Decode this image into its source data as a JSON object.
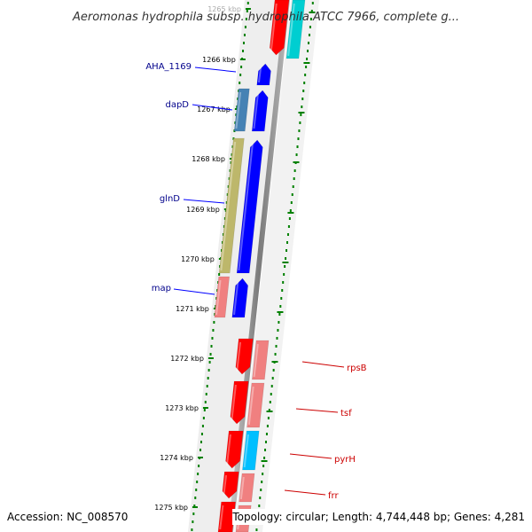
{
  "title": "Aeromonas hydrophila subsp. hydrophila ATCC 7966, complete g...",
  "footer": {
    "accession": "Accession: NC_008570",
    "stats": "Topology: circular; Length: 4,744,448 bp; Genes: 4,281"
  },
  "ticks": [
    "1265 kbp",
    "1266 kbp",
    "1267 kbp",
    "1268 kbp",
    "1269 kbp",
    "1270 kbp",
    "1271 kbp",
    "1272 kbp",
    "1273 kbp",
    "1274 kbp",
    "1275 kbp"
  ],
  "gene_labels": {
    "left": [
      "AHA_1169",
      "dapD",
      "glnD",
      "map"
    ],
    "right": [
      "rpsB",
      "tsf",
      "pyrH",
      "frr"
    ]
  },
  "colors": {
    "blue": "#0000ff",
    "steel_blue": "#4682b4",
    "khaki": "#bdb76b",
    "light_coral": "#f08080",
    "red": "#ff0000",
    "deep_sky_blue": "#00bfff",
    "cyan": "#00ced1",
    "label_left": "#00008b",
    "label_right": "#cc0000",
    "tick_green": "#008000",
    "backbone": "#808080"
  }
}
